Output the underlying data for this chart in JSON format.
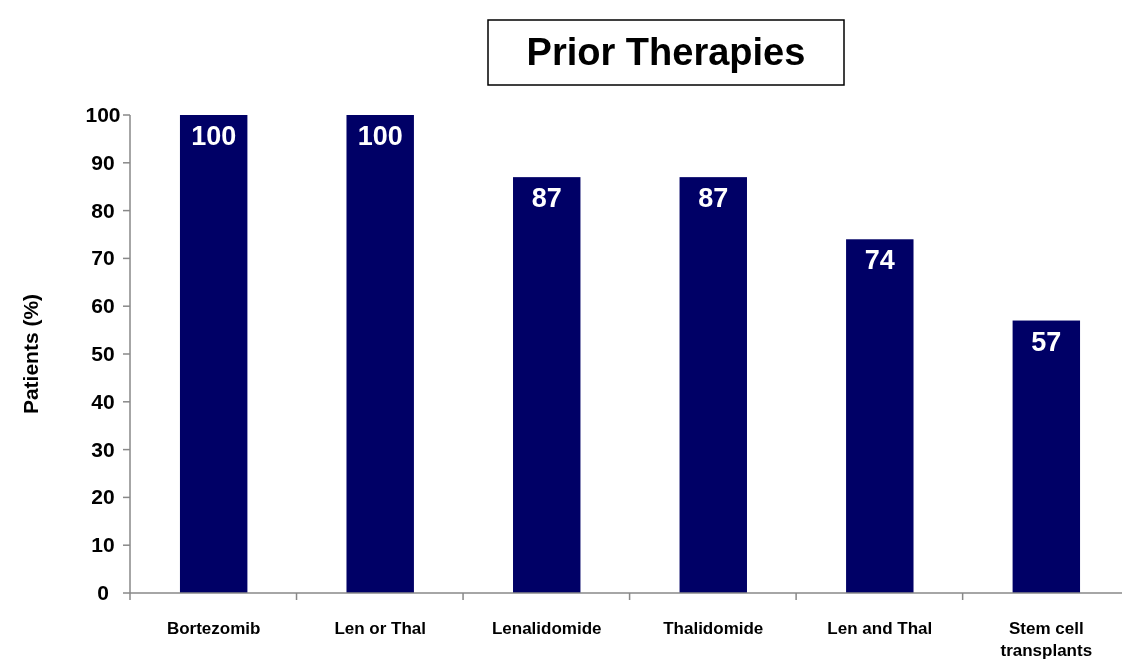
{
  "chart_data": {
    "type": "bar",
    "title": "Prior Therapies",
    "ylabel": "Patients (%)",
    "categories": [
      "Bortezomib",
      "Len or Thal",
      "Lenalidomide",
      "Thalidomide",
      "Len and Thal",
      "Stem cell transplants"
    ],
    "values": [
      100,
      100,
      87,
      87,
      74,
      57
    ],
    "color": "#000066",
    "ylim": [
      0,
      100
    ],
    "yticks": [
      0,
      10,
      20,
      30,
      40,
      50,
      60,
      70,
      80,
      90,
      100
    ],
    "grid": false,
    "data_labels": true
  }
}
